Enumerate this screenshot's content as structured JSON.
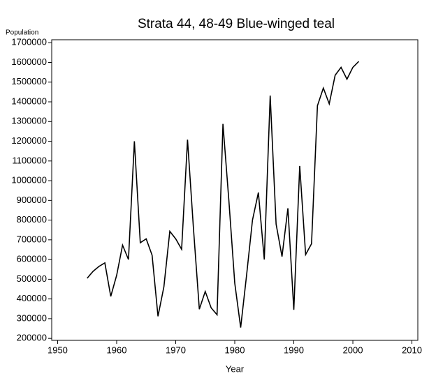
{
  "chart_data": {
    "type": "line",
    "title": "Strata 44, 48-49   Blue-winged teal",
    "y_label": "Population",
    "x_label": "Year",
    "x": [
      1955,
      1956,
      1957,
      1958,
      1959,
      1960,
      1961,
      1962,
      1963,
      1964,
      1965,
      1966,
      1967,
      1968,
      1969,
      1970,
      1971,
      1972,
      1973,
      1974,
      1975,
      1976,
      1977,
      1978,
      1979,
      1980,
      1981,
      1982,
      1983,
      1984,
      1985,
      1986,
      1987,
      1988,
      1989,
      1990,
      1991,
      1992,
      1993,
      1994,
      1995,
      1996,
      1997,
      1998,
      1999,
      2000,
      2001
    ],
    "series": [
      {
        "name": "Blue-winged teal",
        "color": "#000000",
        "values": [
          505000,
          540000,
          565000,
          583000,
          413000,
          520000,
          673000,
          600000,
          1200000,
          685000,
          705000,
          622000,
          312000,
          462000,
          743000,
          705000,
          652000,
          1208000,
          760000,
          348000,
          438000,
          355000,
          320000,
          1288000,
          900000,
          480000,
          255000,
          520000,
          800000,
          940000,
          600000,
          1432000,
          780000,
          615000,
          860000,
          345000,
          1075000,
          625000,
          680000,
          1380000,
          1470000,
          1390000,
          1535000,
          1575000,
          1515000,
          1575000,
          1605000
        ]
      }
    ],
    "xlim": [
      1949,
      2011
    ],
    "xticks": [
      1950,
      1960,
      1970,
      1980,
      1990,
      2000,
      2010
    ],
    "ylim": [
      190000,
      1715000
    ],
    "yticks": [
      200000,
      300000,
      400000,
      500000,
      600000,
      700000,
      800000,
      900000,
      1000000,
      1100000,
      1200000,
      1300000,
      1400000,
      1500000,
      1600000,
      1700000
    ]
  }
}
